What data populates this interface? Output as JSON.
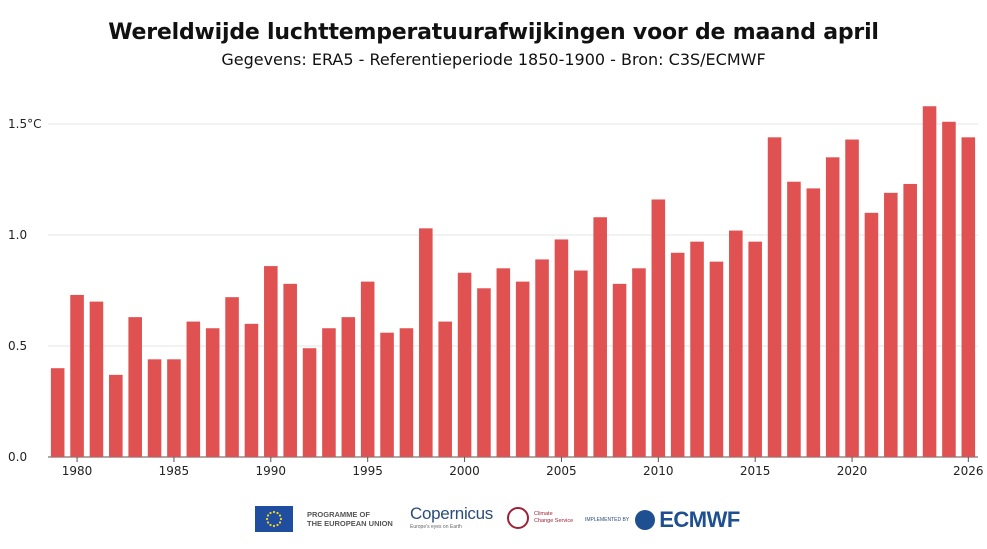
{
  "header": {
    "title": "Wereldwijde luchttemperatuurafwijkingen voor de maand april",
    "subtitle": "Gegevens: ERA5 - Referentieperiode 1850-1900 - Bron: C3S/ECMWF"
  },
  "chart_data": {
    "type": "bar",
    "title": "Wereldwijde luchttemperatuurafwijkingen voor de maand april",
    "subtitle": "Gegevens: ERA5 - Referentieperiode 1850-1900 - Bron: C3S/ECMWF",
    "xlabel": "",
    "ylabel": "",
    "ylim": [
      0,
      1.5
    ],
    "grid": true,
    "bar_color": "#e05252",
    "y_ticks": [
      {
        "value": 0,
        "label": "0.0"
      },
      {
        "value": 0.5,
        "label": "0.5"
      },
      {
        "value": 1.0,
        "label": "1.0"
      },
      {
        "value": 1.5,
        "label": "1.5°C"
      }
    ],
    "x_tick_labels": [
      "1980",
      "1985",
      "1990",
      "1995",
      "2000",
      "2005",
      "2010",
      "2015",
      "2020",
      "2026"
    ],
    "categories": [
      "1979",
      "1980",
      "1981",
      "1982",
      "1983",
      "1984",
      "1985",
      "1986",
      "1987",
      "1988",
      "1989",
      "1990",
      "1991",
      "1992",
      "1993",
      "1994",
      "1995",
      "1996",
      "1997",
      "1998",
      "1999",
      "2000",
      "2001",
      "2002",
      "2003",
      "2004",
      "2005",
      "2006",
      "2007",
      "2008",
      "2009",
      "2010",
      "2011",
      "2012",
      "2013",
      "2014",
      "2015",
      "2016",
      "2017",
      "2018",
      "2019",
      "2020",
      "2021",
      "2022",
      "2023",
      "2024",
      "2025",
      "2026"
    ],
    "values": [
      0.4,
      0.73,
      0.7,
      0.37,
      0.63,
      0.44,
      0.44,
      0.61,
      0.58,
      0.72,
      0.6,
      0.86,
      0.78,
      0.49,
      0.58,
      0.63,
      0.79,
      0.56,
      0.58,
      1.03,
      0.61,
      0.83,
      0.76,
      0.85,
      0.79,
      0.89,
      0.98,
      0.84,
      1.08,
      0.78,
      0.85,
      1.16,
      0.92,
      0.97,
      0.88,
      1.02,
      0.97,
      1.44,
      1.24,
      1.21,
      1.35,
      1.43,
      1.1,
      1.19,
      1.23,
      1.58,
      1.51,
      1.44
    ]
  },
  "footer": {
    "eu_label_line1": "PROGRAMME OF",
    "eu_label_line2": "THE EUROPEAN UNION",
    "copernicus": "Copernicus",
    "copernicus_sub": "Europe's eyes on Earth",
    "ccs_line1": "Climate",
    "ccs_line2": "Change Service",
    "implemented_by": "IMPLEMENTED BY",
    "ecmwf": "ECMWF",
    "colors": {
      "eu_blue": "#1f4ea0",
      "ccs_red": "#9b2335",
      "ecmwf_blue": "#1d4f91"
    }
  }
}
